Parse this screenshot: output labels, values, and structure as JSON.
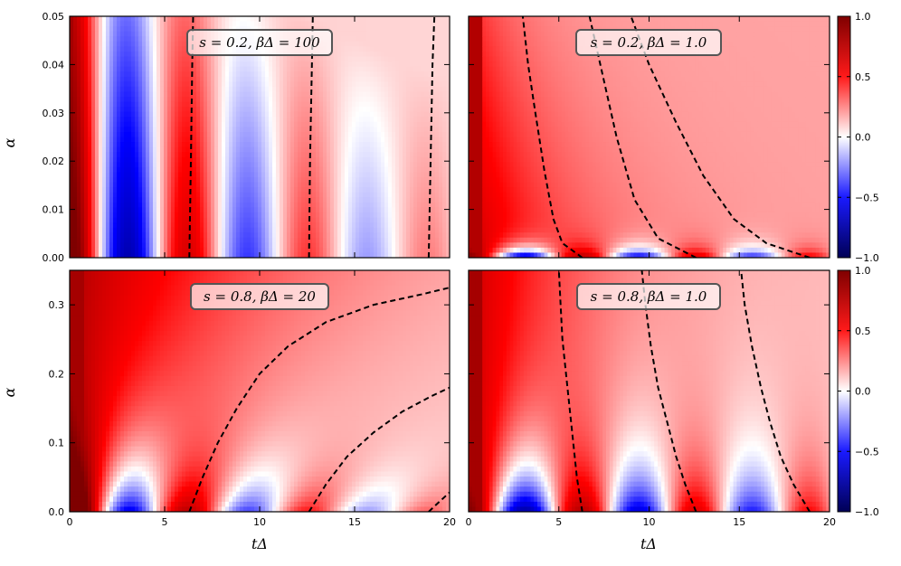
{
  "chart_data": [
    {
      "type": "heatmap",
      "panel": "top-left",
      "label": "s = 0.2,  βΔ = 100",
      "xlim": [
        0,
        20
      ],
      "ylim": [
        0,
        0.05
      ],
      "x_ticks": [
        "0",
        "5",
        "10",
        "15",
        "20"
      ],
      "y_ticks": [
        "0.00",
        "0.01",
        "0.02",
        "0.03",
        "0.04",
        "0.05"
      ],
      "ylabel": "α",
      "contour_x_at_alpha0": [
        6.3,
        12.6,
        18.9
      ],
      "contour_x_at_alpha_max": [
        6.5,
        12.8,
        19.2
      ]
    },
    {
      "type": "heatmap",
      "panel": "top-right",
      "label": "s = 0.2,  βΔ = 1.0",
      "xlim": [
        0,
        20
      ],
      "ylim": [
        0,
        0.05
      ],
      "x_ticks": [
        "5",
        "10",
        "15",
        "20"
      ],
      "contour_x_at_alpha0": [
        6.3,
        12.6,
        18.9
      ],
      "contour_x_at_alpha_max": [
        3.0,
        7.5,
        9.0
      ]
    },
    {
      "type": "heatmap",
      "panel": "bottom-left",
      "label": "s = 0.8,  βΔ = 20",
      "xlim": [
        0,
        20
      ],
      "ylim": [
        0,
        0.35
      ],
      "x_ticks": [
        "0",
        "5",
        "10",
        "15",
        "20"
      ],
      "y_ticks": [
        "0.0",
        "0.1",
        "0.2",
        "0.3"
      ],
      "xlabel": "tΔ",
      "ylabel": "α",
      "contour_x_at_alpha0": [
        6.3,
        12.6,
        18.9
      ]
    },
    {
      "type": "heatmap",
      "panel": "bottom-right",
      "label": "s = 0.8,  βΔ = 1.0",
      "xlim": [
        0,
        20
      ],
      "ylim": [
        0,
        0.35
      ],
      "x_ticks": [
        "0",
        "5",
        "10",
        "15",
        "20"
      ],
      "xlabel": "tΔ",
      "contour_x_at_alpha0": [
        6.3,
        12.6,
        18.9
      ],
      "contour_x_at_alpha_max": [
        5.0,
        9.5,
        15.0
      ]
    }
  ],
  "colorbar": {
    "range": [
      -1.0,
      1.0
    ],
    "ticks": [
      "1.0",
      "0.5",
      "0.0",
      "−0.5",
      "−1.0"
    ],
    "colormap": "seismic",
    "colors": {
      "low": "#000055",
      "blue": "#0000ff",
      "white": "#ffffff",
      "red": "#ff0000",
      "high": "#7f0000"
    }
  }
}
